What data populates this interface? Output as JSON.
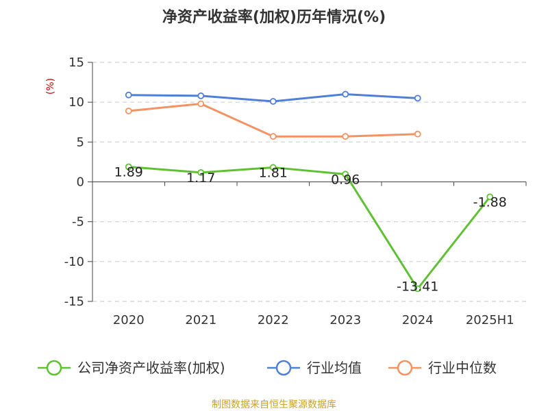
{
  "chart_data": {
    "type": "line",
    "title": "净资产收益率(加权)历年情况(%)",
    "ylabel": "(%)",
    "xlabel": "",
    "categories": [
      "2020",
      "2021",
      "2022",
      "2023",
      "2024",
      "2025H1"
    ],
    "ylim": [
      -15,
      15
    ],
    "yticks": [
      15,
      10,
      5,
      0,
      -5,
      -10,
      -15
    ],
    "grid": true,
    "legend_position": "bottom",
    "series": [
      {
        "name": "公司净资产收益率(加权)",
        "values": [
          1.89,
          1.17,
          1.81,
          0.96,
          -13.41,
          -1.88
        ],
        "labels": [
          "1.89",
          "1.17",
          "1.81",
          "0.96",
          "-13.41",
          "-1.88"
        ],
        "color": "#5ec132"
      },
      {
        "name": "行业均值",
        "values": [
          10.9,
          10.8,
          10.1,
          11.0,
          10.5,
          null
        ],
        "color": "#4f7fd8"
      },
      {
        "name": "行业中位数",
        "values": [
          8.9,
          9.8,
          5.7,
          5.7,
          6.0,
          null
        ],
        "color": "#f39262"
      }
    ],
    "source": "制图数据来自恒生聚源数据库"
  }
}
